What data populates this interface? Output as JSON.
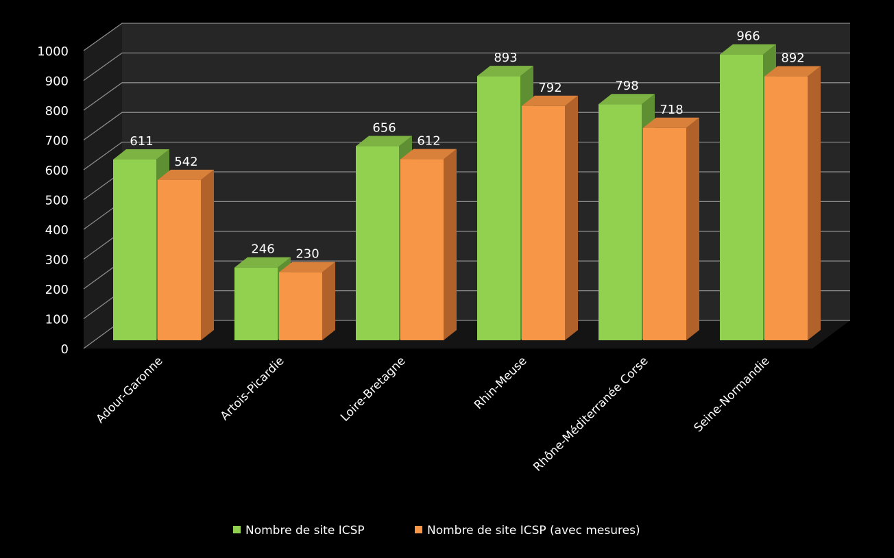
{
  "chart_data": {
    "type": "bar",
    "style": "3d-clustered-column",
    "title": "",
    "xlabel": "",
    "ylabel": "",
    "ylim": [
      0,
      1000
    ],
    "yticks": [
      0,
      100,
      200,
      300,
      400,
      500,
      600,
      700,
      800,
      900,
      1000
    ],
    "grid": true,
    "legend_position": "bottom",
    "categories": [
      "Adour-Garonne",
      "Artois-Picardie",
      "Loire-Bretagne",
      "Rhin-Meuse",
      "Rhône-Méditerranée Corse",
      "Seine-Normandie"
    ],
    "series": [
      {
        "name": "Nombre de site ICSP",
        "values": [
          611,
          246,
          656,
          893,
          798,
          966
        ],
        "color": "#92d050"
      },
      {
        "name": "Nombre de site ICSP (avec mesures)",
        "values": [
          542,
          230,
          612,
          792,
          718,
          892
        ],
        "color": "#f79646"
      }
    ],
    "background": "#000000"
  }
}
